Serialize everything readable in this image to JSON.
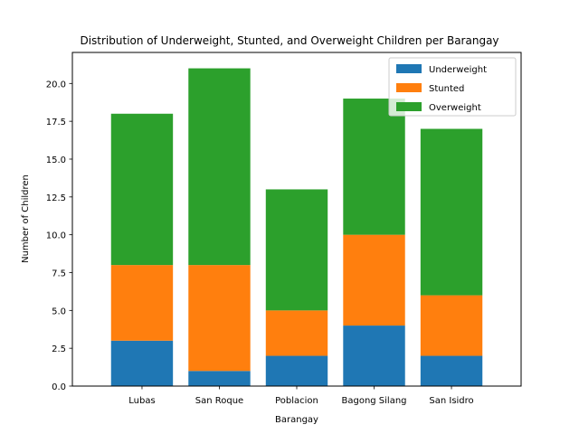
{
  "chart_data": {
    "type": "bar",
    "stacked": true,
    "title": "Distribution of Underweight, Stunted, and Overweight Children per Barangay",
    "xlabel": "Barangay",
    "ylabel": "Number of Children",
    "categories": [
      "Lubas",
      "San Roque",
      "Poblacion",
      "Bagong Silang",
      "San Isidro"
    ],
    "series": [
      {
        "name": "Underweight",
        "values": [
          3,
          1,
          2,
          4,
          2
        ],
        "color": "#1f77b4"
      },
      {
        "name": "Stunted",
        "values": [
          5,
          7,
          3,
          6,
          4
        ],
        "color": "#ff7f0e"
      },
      {
        "name": "Overweight",
        "values": [
          10,
          13,
          8,
          9,
          11
        ],
        "color": "#2ca02c"
      }
    ],
    "ylim": [
      0,
      22.05
    ],
    "yticks": [
      "0.0",
      "2.5",
      "5.0",
      "7.5",
      "10.0",
      "12.5",
      "15.0",
      "17.5",
      "20.0"
    ],
    "grid": false,
    "legend": "top-right"
  }
}
